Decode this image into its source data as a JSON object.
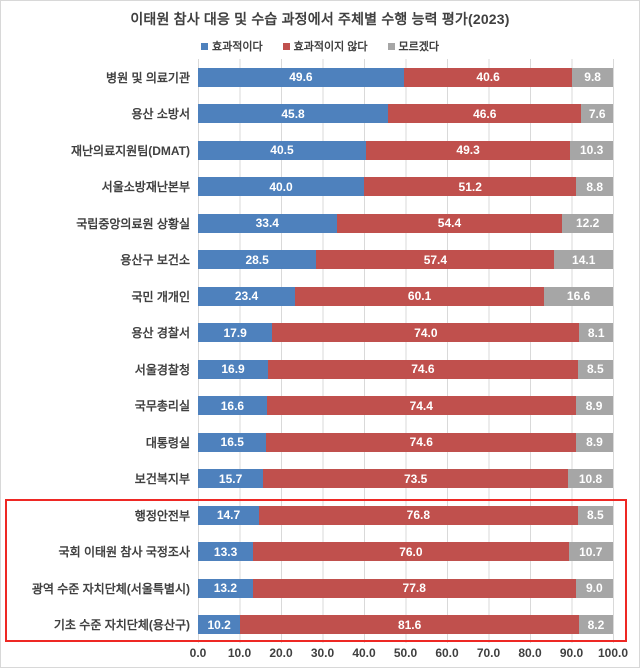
{
  "chart_data": {
    "type": "bar",
    "orientation": "horizontal-stacked",
    "title": "이태원 참사 대응 및 수습 과정에서 주체별 수행 능력 평가(2023)",
    "categories": [
      "병원 및 의료기관",
      "용산 소방서",
      "재난의료지원팀(DMAT)",
      "서울소방재난본부",
      "국립중앙의료원 상황실",
      "용산구 보건소",
      "국민 개개인",
      "용산 경찰서",
      "서울경찰청",
      "국무총리실",
      "대통령실",
      "보건복지부",
      "행정안전부",
      "국회 이태원 참사 국정조사",
      "광역 수준 자치단체(서울특별시)",
      "기초 수준 자치단체(용산구)"
    ],
    "series": [
      {
        "name": "효과적이다",
        "color": "#4e81bd",
        "values": [
          49.6,
          45.8,
          40.5,
          40.0,
          33.4,
          28.5,
          23.4,
          17.9,
          16.9,
          16.6,
          16.5,
          15.7,
          14.7,
          13.3,
          13.2,
          10.2
        ]
      },
      {
        "name": "효과적이지 않다",
        "color": "#c0504d",
        "values": [
          40.6,
          46.6,
          49.3,
          51.2,
          54.4,
          57.4,
          60.1,
          74.0,
          74.6,
          74.4,
          74.6,
          73.5,
          76.8,
          76.0,
          77.8,
          81.6
        ]
      },
      {
        "name": "모르겠다",
        "color": "#a6a6a6",
        "values": [
          9.8,
          7.6,
          10.3,
          8.8,
          12.2,
          14.1,
          16.6,
          8.1,
          8.5,
          8.9,
          8.9,
          10.8,
          8.5,
          10.7,
          9.0,
          8.2
        ]
      }
    ],
    "xlim": [
      0,
      100
    ],
    "x_ticks": [
      "0.0",
      "10.0",
      "20.0",
      "30.0",
      "40.0",
      "50.0",
      "60.0",
      "70.0",
      "80.0",
      "90.0",
      "100.0"
    ],
    "grid": "vertical",
    "legend_position": "top",
    "value_labels": "inside-white-bold",
    "highlight": {
      "box_color": "#ee2824",
      "categories": [
        "행정안전부",
        "국회 이태원 참사 국정조사",
        "광역 수준 자치단체(서울특별시)",
        "기초 수준 자치단체(용산구)"
      ]
    }
  }
}
